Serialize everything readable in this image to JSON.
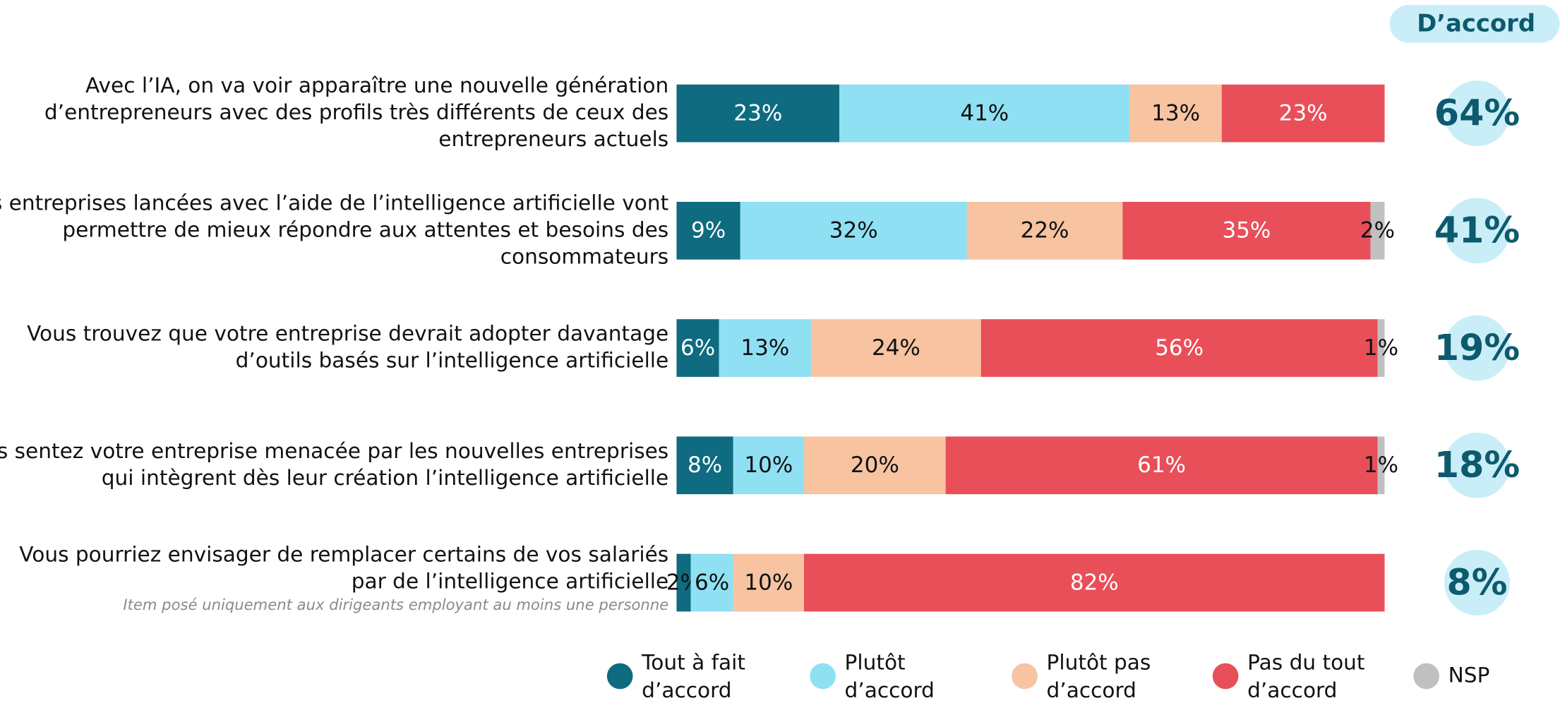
{
  "chart_data": {
    "type": "stacked-bar",
    "header": "D’accord",
    "note": "Item posé uniquement aux dirigeants employant au moins une personne",
    "categories": [
      [
        "Avec l’IA, on va voir apparaître une nouvelle génération",
        "d’entrepreneurs avec des profils très différents de ceux des",
        "entrepreneurs actuels"
      ],
      [
        "Les entreprises lancées avec l’aide de l’intelligence artificielle vont",
        "permettre de mieux répondre aux attentes et besoins des",
        "consommateurs"
      ],
      [
        "Vous trouvez que votre entreprise devrait adopter davantage",
        "d’outils basés sur l’intelligence artificielle"
      ],
      [
        "Vous sentez votre entreprise menacée par les nouvelles entreprises",
        "qui intègrent dès leur création l’intelligence artificielle"
      ],
      [
        "Vous pourriez envisager de remplacer certains de vos salariés",
        "par de l’intelligence artificielle"
      ]
    ],
    "xlim": [
      0,
      100
    ],
    "series": [
      {
        "name": "Tout à fait d’accord",
        "color": "#0e6b80",
        "values": [
          23,
          9,
          6,
          8,
          2
        ],
        "value_labels": [
          "23%",
          "9%",
          "6%",
          "8%",
          "2%"
        ]
      },
      {
        "name": "Plutôt d’accord",
        "color": "#8fe0f3",
        "values": [
          41,
          32,
          13,
          10,
          6
        ],
        "value_labels": [
          "41%",
          "32%",
          "13%",
          "10%",
          "6%"
        ]
      },
      {
        "name": "Plutôt pas d’accord",
        "color": "#f7c3a1",
        "values": [
          13,
          22,
          24,
          20,
          10
        ],
        "value_labels": [
          "13%",
          "22%",
          "24%",
          "20%",
          "10%"
        ]
      },
      {
        "name": "Pas du tout d’accord",
        "color": "#e84f59",
        "values": [
          23,
          35,
          56,
          61,
          82
        ],
        "value_labels": [
          "23%",
          "35%",
          "56%",
          "61%",
          "82%"
        ]
      },
      {
        "name": "NSP",
        "color": "#c0c0c0",
        "values": [
          null,
          2,
          1,
          1,
          null
        ],
        "value_labels": [
          null,
          "2%",
          "1%",
          "1%",
          null
        ]
      }
    ],
    "agree": {
      "values": [
        64,
        41,
        19,
        18,
        8
      ],
      "value_labels": [
        "64%",
        "41%",
        "19%",
        "18%",
        "8%"
      ]
    }
  }
}
